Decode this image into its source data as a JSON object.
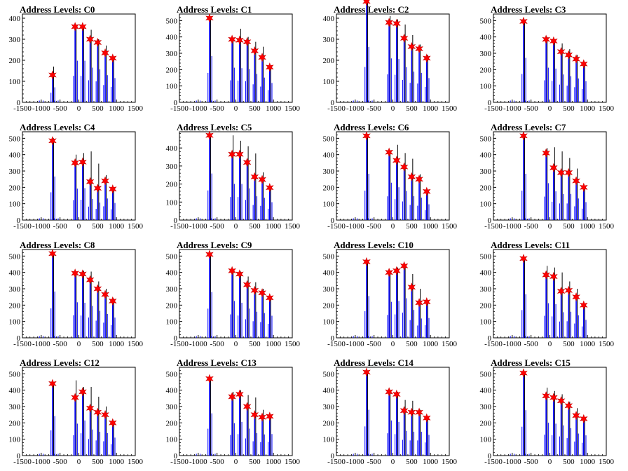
{
  "chart_data": [
    {
      "type": "bar",
      "title": "Address Levels: C0",
      "xlim": [
        -1500,
        1500
      ],
      "ylim": [
        0,
        420
      ],
      "xticks": [
        -1500,
        -1000,
        -500,
        0,
        500,
        1000,
        1500
      ],
      "yticks": [
        0,
        100,
        200,
        300,
        400
      ],
      "peaks": [
        {
          "x": -700,
          "y": 130,
          "bar": 170
        },
        {
          "x": -100,
          "y": 360,
          "bar": 370
        },
        {
          "x": 100,
          "y": 360,
          "bar": 360
        },
        {
          "x": 300,
          "y": 300,
          "bar": 345
        },
        {
          "x": 500,
          "y": 285,
          "bar": 300
        },
        {
          "x": 700,
          "y": 235,
          "bar": 270
        },
        {
          "x": 900,
          "y": 210,
          "bar": 215
        }
      ]
    },
    {
      "type": "bar",
      "title": "Address Levels: C1",
      "xlim": [
        -1500,
        1500
      ],
      "ylim": [
        0,
        540
      ],
      "xticks": [
        -1500,
        -1000,
        -500,
        0,
        500,
        1000,
        1500
      ],
      "yticks": [
        0,
        100,
        200,
        300,
        400,
        500
      ],
      "peaks": [
        {
          "x": -700,
          "y": 515,
          "bar": 520
        },
        {
          "x": -100,
          "y": 385,
          "bar": 390
        },
        {
          "x": 100,
          "y": 380,
          "bar": 450
        },
        {
          "x": 300,
          "y": 370,
          "bar": 400
        },
        {
          "x": 500,
          "y": 315,
          "bar": 370
        },
        {
          "x": 700,
          "y": 275,
          "bar": 340
        },
        {
          "x": 900,
          "y": 215,
          "bar": 220
        }
      ]
    },
    {
      "type": "bar",
      "title": "Address Levels: C2",
      "xlim": [
        -1500,
        1500
      ],
      "ylim": [
        0,
        420
      ],
      "xticks": [
        -1500,
        -1000,
        -500,
        0,
        500,
        1000,
        1500
      ],
      "yticks": [
        0,
        100,
        200,
        300,
        400
      ],
      "peaks": [
        {
          "x": -700,
          "y": 480,
          "bar": 480
        },
        {
          "x": -100,
          "y": 380,
          "bar": 410
        },
        {
          "x": 100,
          "y": 375,
          "bar": 395
        },
        {
          "x": 300,
          "y": 305,
          "bar": 370
        },
        {
          "x": 500,
          "y": 265,
          "bar": 320
        },
        {
          "x": 700,
          "y": 255,
          "bar": 275
        },
        {
          "x": 900,
          "y": 210,
          "bar": 225
        }
      ]
    },
    {
      "type": "bar",
      "title": "Address Levels: C3",
      "xlim": [
        -1500,
        1500
      ],
      "ylim": [
        0,
        540
      ],
      "xticks": [
        -1500,
        -1000,
        -500,
        0,
        500,
        1000,
        1500
      ],
      "yticks": [
        0,
        100,
        200,
        300,
        400,
        500
      ],
      "peaks": [
        {
          "x": -700,
          "y": 495,
          "bar": 495
        },
        {
          "x": -100,
          "y": 385,
          "bar": 400
        },
        {
          "x": 100,
          "y": 375,
          "bar": 385
        },
        {
          "x": 300,
          "y": 310,
          "bar": 360
        },
        {
          "x": 500,
          "y": 290,
          "bar": 325
        },
        {
          "x": 700,
          "y": 265,
          "bar": 290
        },
        {
          "x": 900,
          "y": 235,
          "bar": 240
        }
      ]
    },
    {
      "type": "bar",
      "title": "Address Levels: C4",
      "xlim": [
        -1500,
        1500
      ],
      "ylim": [
        0,
        540
      ],
      "xticks": [
        -1500,
        -1000,
        -500,
        0,
        500,
        1000,
        1500
      ],
      "yticks": [
        0,
        100,
        200,
        300,
        400,
        500
      ],
      "peaks": [
        {
          "x": -700,
          "y": 485,
          "bar": 500
        },
        {
          "x": -100,
          "y": 350,
          "bar": 400
        },
        {
          "x": 100,
          "y": 355,
          "bar": 410
        },
        {
          "x": 300,
          "y": 235,
          "bar": 420
        },
        {
          "x": 500,
          "y": 195,
          "bar": 345
        },
        {
          "x": 700,
          "y": 240,
          "bar": 275
        },
        {
          "x": 900,
          "y": 190,
          "bar": 200
        }
      ]
    },
    {
      "type": "bar",
      "title": "Address Levels: C5",
      "xlim": [
        -1500,
        1500
      ],
      "ylim": [
        0,
        490
      ],
      "xticks": [
        -1500,
        -1000,
        -500,
        0,
        500,
        1000,
        1500
      ],
      "yticks": [
        0,
        100,
        200,
        300,
        400
      ],
      "peaks": [
        {
          "x": -700,
          "y": 470,
          "bar": 475
        },
        {
          "x": -100,
          "y": 365,
          "bar": 470
        },
        {
          "x": 100,
          "y": 365,
          "bar": 440
        },
        {
          "x": 300,
          "y": 320,
          "bar": 410
        },
        {
          "x": 500,
          "y": 240,
          "bar": 370
        },
        {
          "x": 700,
          "y": 225,
          "bar": 265
        },
        {
          "x": 900,
          "y": 180,
          "bar": 190
        }
      ]
    },
    {
      "type": "bar",
      "title": "Address Levels: C6",
      "xlim": [
        -1500,
        1500
      ],
      "ylim": [
        0,
        540
      ],
      "xticks": [
        -1500,
        -1000,
        -500,
        0,
        500,
        1000,
        1500
      ],
      "yticks": [
        0,
        100,
        200,
        300,
        400,
        500
      ],
      "peaks": [
        {
          "x": -700,
          "y": 515,
          "bar": 520
        },
        {
          "x": -100,
          "y": 415,
          "bar": 420
        },
        {
          "x": 100,
          "y": 365,
          "bar": 460
        },
        {
          "x": 300,
          "y": 325,
          "bar": 410
        },
        {
          "x": 500,
          "y": 265,
          "bar": 375
        },
        {
          "x": 700,
          "y": 250,
          "bar": 280
        },
        {
          "x": 900,
          "y": 175,
          "bar": 185
        }
      ]
    },
    {
      "type": "bar",
      "title": "Address Levels: C7",
      "xlim": [
        -1500,
        1500
      ],
      "ylim": [
        0,
        540
      ],
      "xticks": [
        -1500,
        -1000,
        -500,
        0,
        500,
        1000,
        1500
      ],
      "yticks": [
        0,
        100,
        200,
        300,
        400,
        500
      ],
      "peaks": [
        {
          "x": -700,
          "y": 515,
          "bar": 520
        },
        {
          "x": -100,
          "y": 410,
          "bar": 440
        },
        {
          "x": 100,
          "y": 320,
          "bar": 445
        },
        {
          "x": 300,
          "y": 290,
          "bar": 420
        },
        {
          "x": 500,
          "y": 290,
          "bar": 380
        },
        {
          "x": 700,
          "y": 240,
          "bar": 315
        },
        {
          "x": 900,
          "y": 200,
          "bar": 210
        }
      ]
    },
    {
      "type": "bar",
      "title": "Address Levels: C8",
      "xlim": [
        -1500,
        1500
      ],
      "ylim": [
        0,
        540
      ],
      "xticks": [
        -1500,
        -1000,
        -500,
        0,
        500,
        1000,
        1500
      ],
      "yticks": [
        0,
        100,
        200,
        300,
        400,
        500
      ],
      "peaks": [
        {
          "x": -700,
          "y": 515,
          "bar": 520
        },
        {
          "x": -100,
          "y": 395,
          "bar": 405
        },
        {
          "x": 100,
          "y": 390,
          "bar": 410
        },
        {
          "x": 300,
          "y": 355,
          "bar": 405
        },
        {
          "x": 500,
          "y": 300,
          "bar": 345
        },
        {
          "x": 700,
          "y": 265,
          "bar": 300
        },
        {
          "x": 900,
          "y": 225,
          "bar": 240
        }
      ]
    },
    {
      "type": "bar",
      "title": "Address Levels: C9",
      "xlim": [
        -1500,
        1500
      ],
      "ylim": [
        0,
        540
      ],
      "xticks": [
        -1500,
        -1000,
        -500,
        0,
        500,
        1000,
        1500
      ],
      "yticks": [
        0,
        100,
        200,
        300,
        400,
        500
      ],
      "peaks": [
        {
          "x": -700,
          "y": 510,
          "bar": 515
        },
        {
          "x": -100,
          "y": 410,
          "bar": 415
        },
        {
          "x": 100,
          "y": 390,
          "bar": 405
        },
        {
          "x": 300,
          "y": 325,
          "bar": 375
        },
        {
          "x": 500,
          "y": 290,
          "bar": 340
        },
        {
          "x": 700,
          "y": 275,
          "bar": 300
        },
        {
          "x": 900,
          "y": 245,
          "bar": 250
        }
      ]
    },
    {
      "type": "bar",
      "title": "Address Levels: C10",
      "xlim": [
        -1500,
        1500
      ],
      "ylim": [
        0,
        540
      ],
      "xticks": [
        -1500,
        -1000,
        -500,
        0,
        500,
        1000,
        1500
      ],
      "yticks": [
        0,
        100,
        200,
        300,
        400,
        500
      ],
      "peaks": [
        {
          "x": -700,
          "y": 465,
          "bar": 470
        },
        {
          "x": -100,
          "y": 400,
          "bar": 405
        },
        {
          "x": 100,
          "y": 410,
          "bar": 430
        },
        {
          "x": 300,
          "y": 440,
          "bar": 450
        },
        {
          "x": 500,
          "y": 310,
          "bar": 390
        },
        {
          "x": 700,
          "y": 215,
          "bar": 300
        },
        {
          "x": 900,
          "y": 220,
          "bar": 225
        }
      ]
    },
    {
      "type": "bar",
      "title": "Address Levels: C11",
      "xlim": [
        -1500,
        1500
      ],
      "ylim": [
        0,
        540
      ],
      "xticks": [
        -1500,
        -1000,
        -500,
        0,
        500,
        1000,
        1500
      ],
      "yticks": [
        0,
        100,
        200,
        300,
        400,
        500
      ],
      "peaks": [
        {
          "x": -700,
          "y": 485,
          "bar": 490
        },
        {
          "x": -100,
          "y": 385,
          "bar": 440
        },
        {
          "x": 100,
          "y": 375,
          "bar": 430
        },
        {
          "x": 300,
          "y": 285,
          "bar": 400
        },
        {
          "x": 500,
          "y": 290,
          "bar": 345
        },
        {
          "x": 700,
          "y": 250,
          "bar": 300
        },
        {
          "x": 900,
          "y": 200,
          "bar": 205
        }
      ]
    },
    {
      "type": "bar",
      "title": "Address Levels: C12",
      "xlim": [
        -1500,
        1500
      ],
      "ylim": [
        0,
        540
      ],
      "xticks": [
        -1500,
        -1000,
        -500,
        0,
        500,
        1000,
        1500
      ],
      "yticks": [
        0,
        100,
        200,
        300,
        400,
        500
      ],
      "peaks": [
        {
          "x": -700,
          "y": 440,
          "bar": 445
        },
        {
          "x": -100,
          "y": 355,
          "bar": 460
        },
        {
          "x": 100,
          "y": 390,
          "bar": 420
        },
        {
          "x": 300,
          "y": 290,
          "bar": 420
        },
        {
          "x": 500,
          "y": 265,
          "bar": 360
        },
        {
          "x": 700,
          "y": 250,
          "bar": 300
        },
        {
          "x": 900,
          "y": 200,
          "bar": 210
        }
      ]
    },
    {
      "type": "bar",
      "title": "Address Levels: C13",
      "xlim": [
        -1500,
        1500
      ],
      "ylim": [
        0,
        540
      ],
      "xticks": [
        -1500,
        -1000,
        -500,
        0,
        500,
        1000,
        1500
      ],
      "yticks": [
        0,
        100,
        200,
        300,
        400,
        500
      ],
      "peaks": [
        {
          "x": -700,
          "y": 470,
          "bar": 475
        },
        {
          "x": -100,
          "y": 360,
          "bar": 390
        },
        {
          "x": 100,
          "y": 375,
          "bar": 400
        },
        {
          "x": 300,
          "y": 300,
          "bar": 370
        },
        {
          "x": 500,
          "y": 250,
          "bar": 355
        },
        {
          "x": 700,
          "y": 235,
          "bar": 280
        },
        {
          "x": 900,
          "y": 240,
          "bar": 245
        }
      ]
    },
    {
      "type": "bar",
      "title": "Address Levels: C14",
      "xlim": [
        -1500,
        1500
      ],
      "ylim": [
        0,
        540
      ],
      "xticks": [
        -1500,
        -1000,
        -500,
        0,
        500,
        1000,
        1500
      ],
      "yticks": [
        0,
        100,
        200,
        300,
        400,
        500
      ],
      "peaks": [
        {
          "x": -700,
          "y": 510,
          "bar": 520
        },
        {
          "x": -100,
          "y": 390,
          "bar": 400
        },
        {
          "x": 100,
          "y": 375,
          "bar": 390
        },
        {
          "x": 300,
          "y": 275,
          "bar": 340
        },
        {
          "x": 500,
          "y": 265,
          "bar": 335
        },
        {
          "x": 700,
          "y": 265,
          "bar": 280
        },
        {
          "x": 900,
          "y": 230,
          "bar": 240
        }
      ]
    },
    {
      "type": "bar",
      "title": "Address Levels: C15",
      "xlim": [
        -1500,
        1500
      ],
      "ylim": [
        0,
        540
      ],
      "xticks": [
        -1500,
        -1000,
        -500,
        0,
        500,
        1000,
        1500
      ],
      "yticks": [
        0,
        100,
        200,
        300,
        400,
        500
      ],
      "peaks": [
        {
          "x": -700,
          "y": 505,
          "bar": 510
        },
        {
          "x": -100,
          "y": 365,
          "bar": 415
        },
        {
          "x": 100,
          "y": 355,
          "bar": 395
        },
        {
          "x": 300,
          "y": 335,
          "bar": 375
        },
        {
          "x": 500,
          "y": 305,
          "bar": 330
        },
        {
          "x": 700,
          "y": 245,
          "bar": 290
        },
        {
          "x": 900,
          "y": 225,
          "bar": 230
        }
      ]
    }
  ],
  "colors": {
    "bar": "#0000ff",
    "spike": "#000000",
    "marker": "#ff0000"
  }
}
